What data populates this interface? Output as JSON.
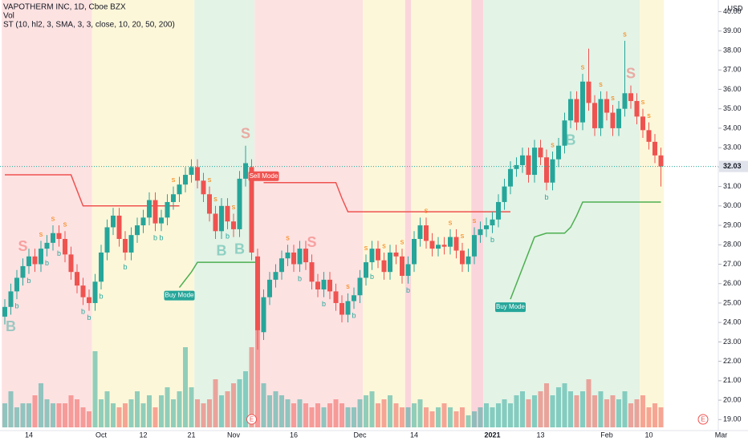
{
  "chart_data": {
    "type": "candlestick",
    "title": "VAPOTHERM INC, 1D, Cboe BZX",
    "volume_title": "Vol",
    "indicator_title": "ST (10, hl2, 3, SMA, 3, 3, close, 10, 20, 50, 200)",
    "currency": "USD",
    "categories": [
      null,
      null,
      null,
      null,
      "14",
      null,
      null,
      null,
      null,
      null,
      null,
      null,
      null,
      null,
      null,
      null,
      "Oct",
      null,
      null,
      null,
      null,
      null,
      null,
      "12",
      null,
      null,
      null,
      null,
      null,
      null,
      null,
      "21",
      null,
      null,
      null,
      null,
      null,
      null,
      "Nov",
      null,
      null,
      null,
      null,
      null,
      null,
      null,
      null,
      null,
      "16",
      null,
      null,
      null,
      null,
      null,
      null,
      null,
      null,
      null,
      null,
      "Dec",
      null,
      null,
      null,
      null,
      null,
      null,
      null,
      null,
      "14",
      null,
      null,
      null,
      null,
      null,
      null,
      null,
      null,
      null,
      null,
      null,
      null,
      "2021",
      null,
      null,
      null,
      null,
      null,
      null,
      null,
      "13",
      null,
      null,
      null,
      null,
      null,
      null,
      null,
      null,
      null,
      null,
      "Feb",
      null,
      null,
      null,
      null,
      null,
      null,
      "10",
      null,
      null,
      null,
      null,
      null,
      null,
      null,
      null,
      null,
      null,
      null,
      "Mar"
    ],
    "open": [
      24.3,
      24.8,
      25.6,
      26.3,
      26.9,
      27.4,
      27.0,
      27.8,
      28.1,
      28.6,
      28.3,
      27.5,
      26.6,
      25.9,
      25.3,
      25.0,
      26.1,
      27.6,
      28.9,
      29.5,
      28.3,
      27.6,
      28.5,
      29.0,
      29.4,
      30.3,
      29.1,
      29.4,
      30.2,
      30.6,
      31.1,
      31.6,
      32.0,
      31.3,
      30.6,
      29.6,
      28.7,
      30.0,
      29.2,
      28.8,
      31.4,
      32.0,
      27.4,
      23.5,
      25.3,
      26.2,
      26.6,
      27.3,
      27.6,
      27.0,
      27.8,
      27.1,
      26.1,
      25.7,
      26.2,
      25.6,
      25.0,
      24.4,
      25.1,
      25.4,
      26.3,
      27.1,
      27.8,
      27.2,
      26.6,
      27.6,
      27.4,
      26.4,
      27.0,
      28.3,
      29.0,
      28.2,
      27.8,
      28.0,
      27.9,
      28.4,
      27.7,
      27.0,
      27.4,
      28.5,
      28.8,
      29.0,
      29.3,
      30.2,
      31.0,
      31.9,
      32.1,
      32.6,
      31.6,
      33.0,
      32.5,
      31.2,
      32.4,
      33.1,
      34.4,
      35.5,
      34.3,
      36.4,
      35.3,
      34.0,
      35.5,
      34.8,
      34.0,
      35.0,
      35.8,
      35.4,
      34.6,
      33.9,
      33.3,
      32.6,
      null,
      null,
      null,
      null,
      null,
      null,
      null,
      null,
      null,
      null
    ],
    "high": [
      25.2,
      26.0,
      26.7,
      27.3,
      27.8,
      27.8,
      28.2,
      28.5,
      29.0,
      29.0,
      28.7,
      27.9,
      27.0,
      26.3,
      25.7,
      26.5,
      28.0,
      29.3,
      29.9,
      29.9,
      28.7,
      28.9,
      29.4,
      29.8,
      30.7,
      30.7,
      29.8,
      30.6,
      31.0,
      31.5,
      32.0,
      32.4,
      32.4,
      31.7,
      31.0,
      30.0,
      30.4,
      30.4,
      29.6,
      31.8,
      33.1,
      32.4,
      27.8,
      25.7,
      26.6,
      27.0,
      27.7,
      28.0,
      28.0,
      28.2,
      28.2,
      27.5,
      26.5,
      26.6,
      26.6,
      26.0,
      25.4,
      25.5,
      25.8,
      26.7,
      27.5,
      28.2,
      28.2,
      27.6,
      28.0,
      28.0,
      27.8,
      27.4,
      28.7,
      29.4,
      29.4,
      28.6,
      28.4,
      28.4,
      28.8,
      28.8,
      28.1,
      27.8,
      28.9,
      29.2,
      29.4,
      29.7,
      30.6,
      31.4,
      32.3,
      32.5,
      33.0,
      33.0,
      33.4,
      33.4,
      32.9,
      32.8,
      33.5,
      34.8,
      35.9,
      35.9,
      36.8,
      38.1,
      35.7,
      35.9,
      35.9,
      35.2,
      35.4,
      38.5,
      36.2,
      35.8,
      35.0,
      34.3,
      33.7,
      33.0,
      null,
      null,
      null,
      null,
      null,
      null,
      null,
      null,
      null,
      null
    ],
    "low": [
      23.9,
      24.4,
      25.2,
      25.9,
      26.5,
      26.6,
      26.6,
      27.4,
      27.7,
      27.9,
      27.1,
      26.2,
      25.5,
      24.9,
      24.6,
      24.6,
      25.7,
      27.2,
      28.5,
      27.9,
      27.2,
      27.2,
      28.1,
      28.6,
      29.0,
      28.7,
      28.7,
      29.0,
      29.8,
      30.2,
      30.7,
      31.2,
      30.9,
      30.2,
      29.2,
      28.3,
      28.3,
      28.8,
      28.4,
      28.4,
      31.0,
      27.2,
      22.6,
      23.1,
      24.9,
      25.8,
      26.2,
      26.9,
      26.6,
      26.6,
      26.7,
      25.7,
      25.3,
      25.3,
      25.2,
      24.6,
      24.0,
      24.0,
      24.7,
      25.0,
      25.9,
      26.7,
      26.8,
      26.2,
      26.2,
      27.0,
      26.0,
      26.0,
      26.6,
      27.9,
      27.8,
      27.4,
      27.4,
      27.5,
      27.5,
      27.3,
      26.6,
      26.6,
      27.0,
      28.1,
      28.4,
      28.6,
      28.9,
      29.8,
      30.6,
      31.5,
      31.7,
      31.2,
      31.2,
      32.1,
      30.8,
      30.8,
      32.0,
      32.7,
      34.0,
      33.9,
      33.9,
      34.9,
      33.6,
      33.6,
      34.4,
      33.6,
      33.6,
      34.6,
      35.0,
      34.2,
      33.5,
      32.9,
      32.2,
      31.0,
      null,
      null,
      null,
      null,
      null,
      null,
      null,
      null,
      null,
      null
    ],
    "close": [
      24.8,
      25.6,
      26.3,
      26.9,
      27.4,
      27.0,
      27.8,
      28.1,
      28.6,
      28.3,
      27.5,
      26.6,
      25.9,
      25.3,
      25.0,
      26.1,
      27.6,
      28.9,
      29.5,
      28.3,
      27.6,
      28.5,
      29.0,
      29.4,
      30.3,
      29.1,
      29.4,
      30.2,
      30.6,
      31.1,
      31.6,
      32.0,
      31.3,
      30.6,
      29.6,
      28.7,
      30.0,
      29.2,
      28.8,
      31.4,
      32.2,
      27.6,
      23.6,
      25.3,
      26.2,
      26.6,
      27.3,
      27.6,
      27.0,
      27.8,
      27.1,
      26.1,
      25.7,
      26.2,
      25.6,
      25.0,
      24.4,
      25.1,
      25.4,
      26.3,
      27.1,
      27.8,
      27.2,
      26.6,
      27.6,
      27.4,
      26.4,
      27.0,
      28.3,
      29.0,
      28.2,
      27.8,
      28.0,
      27.9,
      28.4,
      27.7,
      27.0,
      27.4,
      28.5,
      28.8,
      29.0,
      29.3,
      30.2,
      31.0,
      31.9,
      32.1,
      32.6,
      31.6,
      33.0,
      32.5,
      31.2,
      32.4,
      33.1,
      34.4,
      35.5,
      34.3,
      36.4,
      35.3,
      34.0,
      35.5,
      34.8,
      34.0,
      35.0,
      35.8,
      35.4,
      34.6,
      33.9,
      33.3,
      32.6,
      32.03,
      null,
      null,
      null,
      null,
      null,
      null,
      null,
      null,
      null,
      null
    ],
    "volume": [
      300000,
      450000,
      250000,
      300000,
      300000,
      400000,
      550000,
      350000,
      300000,
      300000,
      300000,
      400000,
      350000,
      250000,
      200000,
      950000,
      350000,
      450000,
      300000,
      250000,
      300000,
      350000,
      450000,
      300000,
      400000,
      250000,
      400000,
      500000,
      350000,
      450000,
      1000000,
      500000,
      350000,
      300000,
      350000,
      600000,
      400000,
      450000,
      550000,
      600000,
      700000,
      1000000,
      1450000,
      550000,
      400000,
      450000,
      400000,
      350000,
      300000,
      350000,
      300000,
      250000,
      300000,
      250000,
      300000,
      350000,
      300000,
      250000,
      250000,
      350000,
      400000,
      450000,
      300000,
      350000,
      400000,
      300000,
      250000,
      250000,
      300000,
      350000,
      250000,
      200000,
      250000,
      300000,
      250000,
      200000,
      250000,
      150000,
      200000,
      250000,
      300000,
      250000,
      300000,
      350000,
      300000,
      400000,
      450000,
      350000,
      400000,
      450000,
      550000,
      400000,
      500000,
      550000,
      450000,
      400000,
      450000,
      600000,
      400000,
      450000,
      350000,
      400000,
      350000,
      450000,
      300000,
      350000,
      400000,
      250000,
      300000,
      250000,
      null,
      null,
      null,
      null,
      null,
      null,
      null,
      null,
      null,
      null
    ],
    "signals": [
      null,
      "B",
      "b",
      "S",
      "b",
      null,
      "s",
      "b",
      "s",
      "b",
      "s",
      null,
      null,
      "b",
      "b",
      null,
      "b",
      null,
      null,
      null,
      "b",
      null,
      null,
      null,
      null,
      "b",
      "b",
      null,
      "s",
      null,
      null,
      null,
      null,
      null,
      "s",
      "s",
      "B",
      "b",
      "s",
      "B",
      "S",
      null,
      null,
      null,
      null,
      null,
      null,
      "s",
      null,
      "b",
      null,
      "S",
      null,
      "b",
      null,
      null,
      null,
      "s",
      "b",
      null,
      "s",
      "b",
      null,
      "s",
      null,
      null,
      "s",
      "b",
      null,
      null,
      "s",
      null,
      null,
      null,
      "s",
      null,
      "s",
      null,
      "s",
      null,
      null,
      "b",
      null,
      null,
      null,
      null,
      null,
      null,
      null,
      null,
      "b",
      "s",
      null,
      null,
      "B",
      null,
      "s",
      null,
      null,
      "s",
      null,
      "s",
      null,
      "s",
      "S",
      null,
      "s",
      "s",
      null,
      null,
      null,
      null,
      null,
      null,
      null,
      null,
      null,
      null,
      null,
      null
    ],
    "st_up": [
      null,
      null,
      null,
      null,
      null,
      null,
      null,
      null,
      null,
      null,
      null,
      null,
      null,
      null,
      null,
      null,
      null,
      null,
      null,
      null,
      null,
      null,
      null,
      null,
      null,
      null,
      null,
      null,
      null,
      25.8,
      26.2,
      26.6,
      27.1,
      27.1,
      27.1,
      27.1,
      27.1,
      27.1,
      27.1,
      27.1,
      27.1,
      27.1,
      27.1,
      null,
      null,
      null,
      null,
      null,
      null,
      null,
      null,
      null,
      null,
      null,
      null,
      null,
      null,
      null,
      null,
      null,
      null,
      null,
      null,
      null,
      null,
      null,
      null,
      null,
      null,
      null,
      null,
      null,
      null,
      null,
      null,
      null,
      null,
      null,
      null,
      null,
      null,
      null,
      null,
      null,
      25.2,
      26.0,
      26.8,
      27.6,
      28.4,
      28.5,
      28.6,
      28.6,
      28.6,
      28.6,
      28.9,
      29.5,
      30.2,
      30.2,
      30.2,
      30.2,
      30.2,
      30.2,
      30.2,
      30.2,
      30.2,
      30.2,
      30.2,
      30.2,
      30.2,
      30.2,
      null,
      null,
      null,
      null,
      null,
      null,
      null,
      null,
      null,
      null
    ],
    "st_down": [
      31.6,
      31.6,
      31.6,
      31.6,
      31.6,
      31.6,
      31.6,
      31.6,
      31.6,
      31.6,
      31.6,
      31.6,
      30.8,
      30.0,
      30.0,
      30.0,
      30.0,
      30.0,
      30.0,
      30.0,
      30.0,
      30.0,
      30.0,
      30.0,
      30.0,
      30.0,
      30.0,
      30.0,
      30.0,
      30.0,
      null,
      null,
      null,
      null,
      null,
      null,
      null,
      null,
      null,
      null,
      null,
      null,
      null,
      31.2,
      31.2,
      31.2,
      31.2,
      31.2,
      31.2,
      31.2,
      31.2,
      31.2,
      31.2,
      31.2,
      31.2,
      31.2,
      30.4,
      29.7,
      29.7,
      29.7,
      29.7,
      29.7,
      29.7,
      29.7,
      29.7,
      29.7,
      29.7,
      29.7,
      29.7,
      29.7,
      29.7,
      29.7,
      29.7,
      29.7,
      29.7,
      29.7,
      29.7,
      29.7,
      29.7,
      29.7,
      29.7,
      29.7,
      29.7,
      29.7,
      29.7,
      null,
      null,
      null,
      null,
      null,
      null,
      null,
      null,
      null,
      null,
      null,
      null,
      null,
      null,
      null,
      null,
      null,
      null,
      null,
      null,
      null,
      null,
      null,
      null,
      null,
      null,
      null,
      null,
      null,
      null,
      null,
      null,
      null,
      null,
      null
    ],
    "mode_labels": [
      {
        "index": 29,
        "label": "Buy Mode",
        "color": "#26a69a"
      },
      {
        "index": 43,
        "label": "Sell Mode",
        "color": "#ef5350"
      },
      {
        "index": 84,
        "label": "Buy Mode",
        "color": "#26a69a"
      }
    ],
    "earnings": [
      {
        "index": 41,
        "label": "E"
      },
      {
        "index": 116,
        "label": "E"
      }
    ],
    "zones": [
      {
        "from": 0,
        "to": 14,
        "color": "#fde2e2"
      },
      {
        "from": 15,
        "to": 31,
        "color": "#fdf7da"
      },
      {
        "from": 32,
        "to": 41,
        "color": "#e3f3e6"
      },
      {
        "from": 42,
        "to": 59,
        "color": "#fde2e2"
      },
      {
        "from": 60,
        "to": 66,
        "color": "#fdf7da"
      },
      {
        "from": 67,
        "to": 67,
        "color": "#fbd5dc"
      },
      {
        "from": 68,
        "to": 77,
        "color": "#fdf7da"
      },
      {
        "from": 78,
        "to": 79,
        "color": "#fbd5dc"
      },
      {
        "from": 80,
        "to": 105,
        "color": "#e3f3e6"
      },
      {
        "from": 106,
        "to": 109,
        "color": "#fdf7da"
      }
    ],
    "up_color": "#26a69a",
    "down_color": "#ef5350",
    "st_up_color": "#4caf50",
    "st_down_color": "#ef5350",
    "buy_signal_color": "#26a69a",
    "sell_signal_color": "#f57c00",
    "ylim": [
      18.6,
      40.6
    ],
    "yticks": [
      {
        "value": 19,
        "label": "19.00"
      },
      {
        "value": 20,
        "label": "20.00"
      },
      {
        "value": 21,
        "label": "21.00"
      },
      {
        "value": 22,
        "label": "22.00"
      },
      {
        "value": 23,
        "label": "23.00"
      },
      {
        "value": 24,
        "label": "24.00"
      },
      {
        "value": 25,
        "label": "25.00"
      },
      {
        "value": 26,
        "label": "26.00"
      },
      {
        "value": 27,
        "label": "27.00"
      },
      {
        "value": 28,
        "label": "28.00"
      },
      {
        "value": 29,
        "label": "29.00"
      },
      {
        "value": 30,
        "label": "30.00"
      },
      {
        "value": 31,
        "label": "31.00"
      },
      {
        "value": 32,
        "label": "32.00"
      },
      {
        "value": 33,
        "label": "33.00"
      },
      {
        "value": 34,
        "label": "34.00"
      },
      {
        "value": 35,
        "label": "35.00"
      },
      {
        "value": 36,
        "label": "36.00"
      },
      {
        "value": 37,
        "label": "37.00"
      },
      {
        "value": 38,
        "label": "38.00"
      },
      {
        "value": 39,
        "label": "39.00"
      },
      {
        "value": 40,
        "label": "40.00"
      }
    ],
    "grid": false
  }
}
